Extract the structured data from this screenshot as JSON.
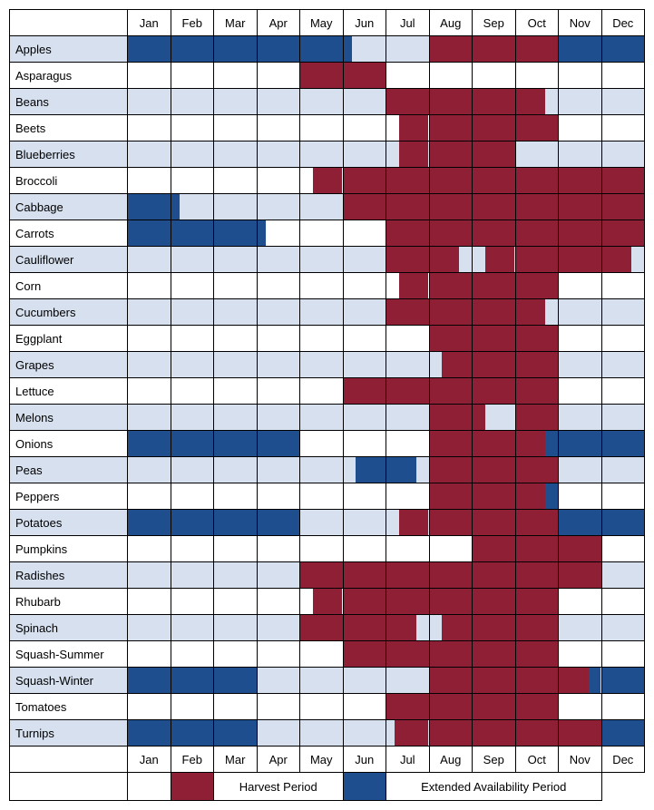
{
  "type": "gantt-availability-table",
  "colors": {
    "harvest": "#8e1f34",
    "extended": "#1f4e8e",
    "row_shade": "#d6e0ef",
    "border": "#000000",
    "background": "#ffffff"
  },
  "fontsize": {
    "header": 13,
    "label": 13,
    "legend": 13
  },
  "months": [
    "Jan",
    "Feb",
    "Mar",
    "Apr",
    "May",
    "Jun",
    "Jul",
    "Aug",
    "Sep",
    "Oct",
    "Nov",
    "Dec"
  ],
  "legend": {
    "harvest_label": "Harvest Period",
    "extended_label": "Extended Availability Period"
  },
  "rows": [
    {
      "name": "Apples",
      "shaded": true,
      "segments": [
        {
          "kind": "extended",
          "start": 1.0,
          "end": 6.2
        },
        {
          "kind": "harvest",
          "start": 8.0,
          "end": 11.0
        },
        {
          "kind": "extended",
          "start": 11.0,
          "end": 13.0
        }
      ]
    },
    {
      "name": "Asparagus",
      "shaded": false,
      "segments": [
        {
          "kind": "harvest",
          "start": 5.0,
          "end": 7.0
        }
      ]
    },
    {
      "name": "Beans",
      "shaded": true,
      "segments": [
        {
          "kind": "harvest",
          "start": 7.0,
          "end": 10.7
        }
      ]
    },
    {
      "name": "Beets",
      "shaded": false,
      "segments": [
        {
          "kind": "harvest",
          "start": 7.3,
          "end": 11.0
        }
      ]
    },
    {
      "name": "Blueberries",
      "shaded": true,
      "segments": [
        {
          "kind": "harvest",
          "start": 7.3,
          "end": 10.0
        }
      ]
    },
    {
      "name": "Broccoli",
      "shaded": false,
      "segments": [
        {
          "kind": "harvest",
          "start": 5.3,
          "end": 13.0
        }
      ]
    },
    {
      "name": "Cabbage",
      "shaded": true,
      "segments": [
        {
          "kind": "extended",
          "start": 1.0,
          "end": 2.2
        },
        {
          "kind": "harvest",
          "start": 6.0,
          "end": 13.0
        }
      ]
    },
    {
      "name": "Carrots",
      "shaded": false,
      "segments": [
        {
          "kind": "extended",
          "start": 1.0,
          "end": 4.2
        },
        {
          "kind": "harvest",
          "start": 7.0,
          "end": 13.0
        }
      ]
    },
    {
      "name": "Cauliflower",
      "shaded": true,
      "segments": [
        {
          "kind": "harvest",
          "start": 7.0,
          "end": 8.7
        },
        {
          "kind": "harvest",
          "start": 9.3,
          "end": 12.7
        }
      ]
    },
    {
      "name": "Corn",
      "shaded": false,
      "segments": [
        {
          "kind": "harvest",
          "start": 7.3,
          "end": 11.0
        }
      ]
    },
    {
      "name": "Cucumbers",
      "shaded": true,
      "segments": [
        {
          "kind": "harvest",
          "start": 7.0,
          "end": 10.7
        }
      ]
    },
    {
      "name": "Eggplant",
      "shaded": false,
      "segments": [
        {
          "kind": "harvest",
          "start": 8.0,
          "end": 11.0
        }
      ]
    },
    {
      "name": "Grapes",
      "shaded": true,
      "segments": [
        {
          "kind": "harvest",
          "start": 8.3,
          "end": 11.0
        }
      ]
    },
    {
      "name": "Lettuce",
      "shaded": false,
      "segments": [
        {
          "kind": "harvest",
          "start": 6.0,
          "end": 11.0
        }
      ]
    },
    {
      "name": "Melons",
      "shaded": true,
      "segments": [
        {
          "kind": "harvest",
          "start": 8.0,
          "end": 9.3
        },
        {
          "kind": "harvest",
          "start": 10.0,
          "end": 11.0
        }
      ]
    },
    {
      "name": "Onions",
      "shaded": false,
      "segments": [
        {
          "kind": "extended",
          "start": 1.0,
          "end": 5.0
        },
        {
          "kind": "harvest",
          "start": 8.0,
          "end": 10.7
        },
        {
          "kind": "extended",
          "start": 10.7,
          "end": 13.0
        }
      ]
    },
    {
      "name": "Peas",
      "shaded": true,
      "segments": [
        {
          "kind": "extended",
          "start": 6.3,
          "end": 7.7
        },
        {
          "kind": "harvest",
          "start": 8.0,
          "end": 11.0
        }
      ]
    },
    {
      "name": "Peppers",
      "shaded": false,
      "segments": [
        {
          "kind": "harvest",
          "start": 8.0,
          "end": 10.7
        },
        {
          "kind": "extended",
          "start": 10.7,
          "end": 11.0
        }
      ]
    },
    {
      "name": "Potatoes",
      "shaded": true,
      "segments": [
        {
          "kind": "extended",
          "start": 1.0,
          "end": 5.0
        },
        {
          "kind": "harvest",
          "start": 7.3,
          "end": 11.0
        },
        {
          "kind": "extended",
          "start": 11.0,
          "end": 13.0
        }
      ]
    },
    {
      "name": "Pumpkins",
      "shaded": false,
      "segments": [
        {
          "kind": "harvest",
          "start": 9.0,
          "end": 12.0
        }
      ]
    },
    {
      "name": "Radishes",
      "shaded": true,
      "segments": [
        {
          "kind": "harvest",
          "start": 5.0,
          "end": 12.0
        }
      ]
    },
    {
      "name": "Rhubarb",
      "shaded": false,
      "segments": [
        {
          "kind": "harvest",
          "start": 5.3,
          "end": 11.0
        }
      ]
    },
    {
      "name": "Spinach",
      "shaded": true,
      "segments": [
        {
          "kind": "harvest",
          "start": 5.0,
          "end": 7.7
        },
        {
          "kind": "harvest",
          "start": 8.3,
          "end": 11.0
        }
      ]
    },
    {
      "name": "Squash-Summer",
      "shaded": false,
      "segments": [
        {
          "kind": "harvest",
          "start": 6.0,
          "end": 11.0
        }
      ]
    },
    {
      "name": "Squash-Winter",
      "shaded": true,
      "segments": [
        {
          "kind": "extended",
          "start": 1.0,
          "end": 4.0
        },
        {
          "kind": "harvest",
          "start": 8.0,
          "end": 11.7
        },
        {
          "kind": "extended",
          "start": 11.7,
          "end": 13.0
        }
      ]
    },
    {
      "name": "Tomatoes",
      "shaded": false,
      "segments": [
        {
          "kind": "harvest",
          "start": 7.0,
          "end": 11.0
        }
      ]
    },
    {
      "name": "Turnips",
      "shaded": true,
      "segments": [
        {
          "kind": "extended",
          "start": 1.0,
          "end": 4.0
        },
        {
          "kind": "harvest",
          "start": 7.2,
          "end": 12.0
        },
        {
          "kind": "extended",
          "start": 12.0,
          "end": 13.0
        }
      ]
    }
  ]
}
